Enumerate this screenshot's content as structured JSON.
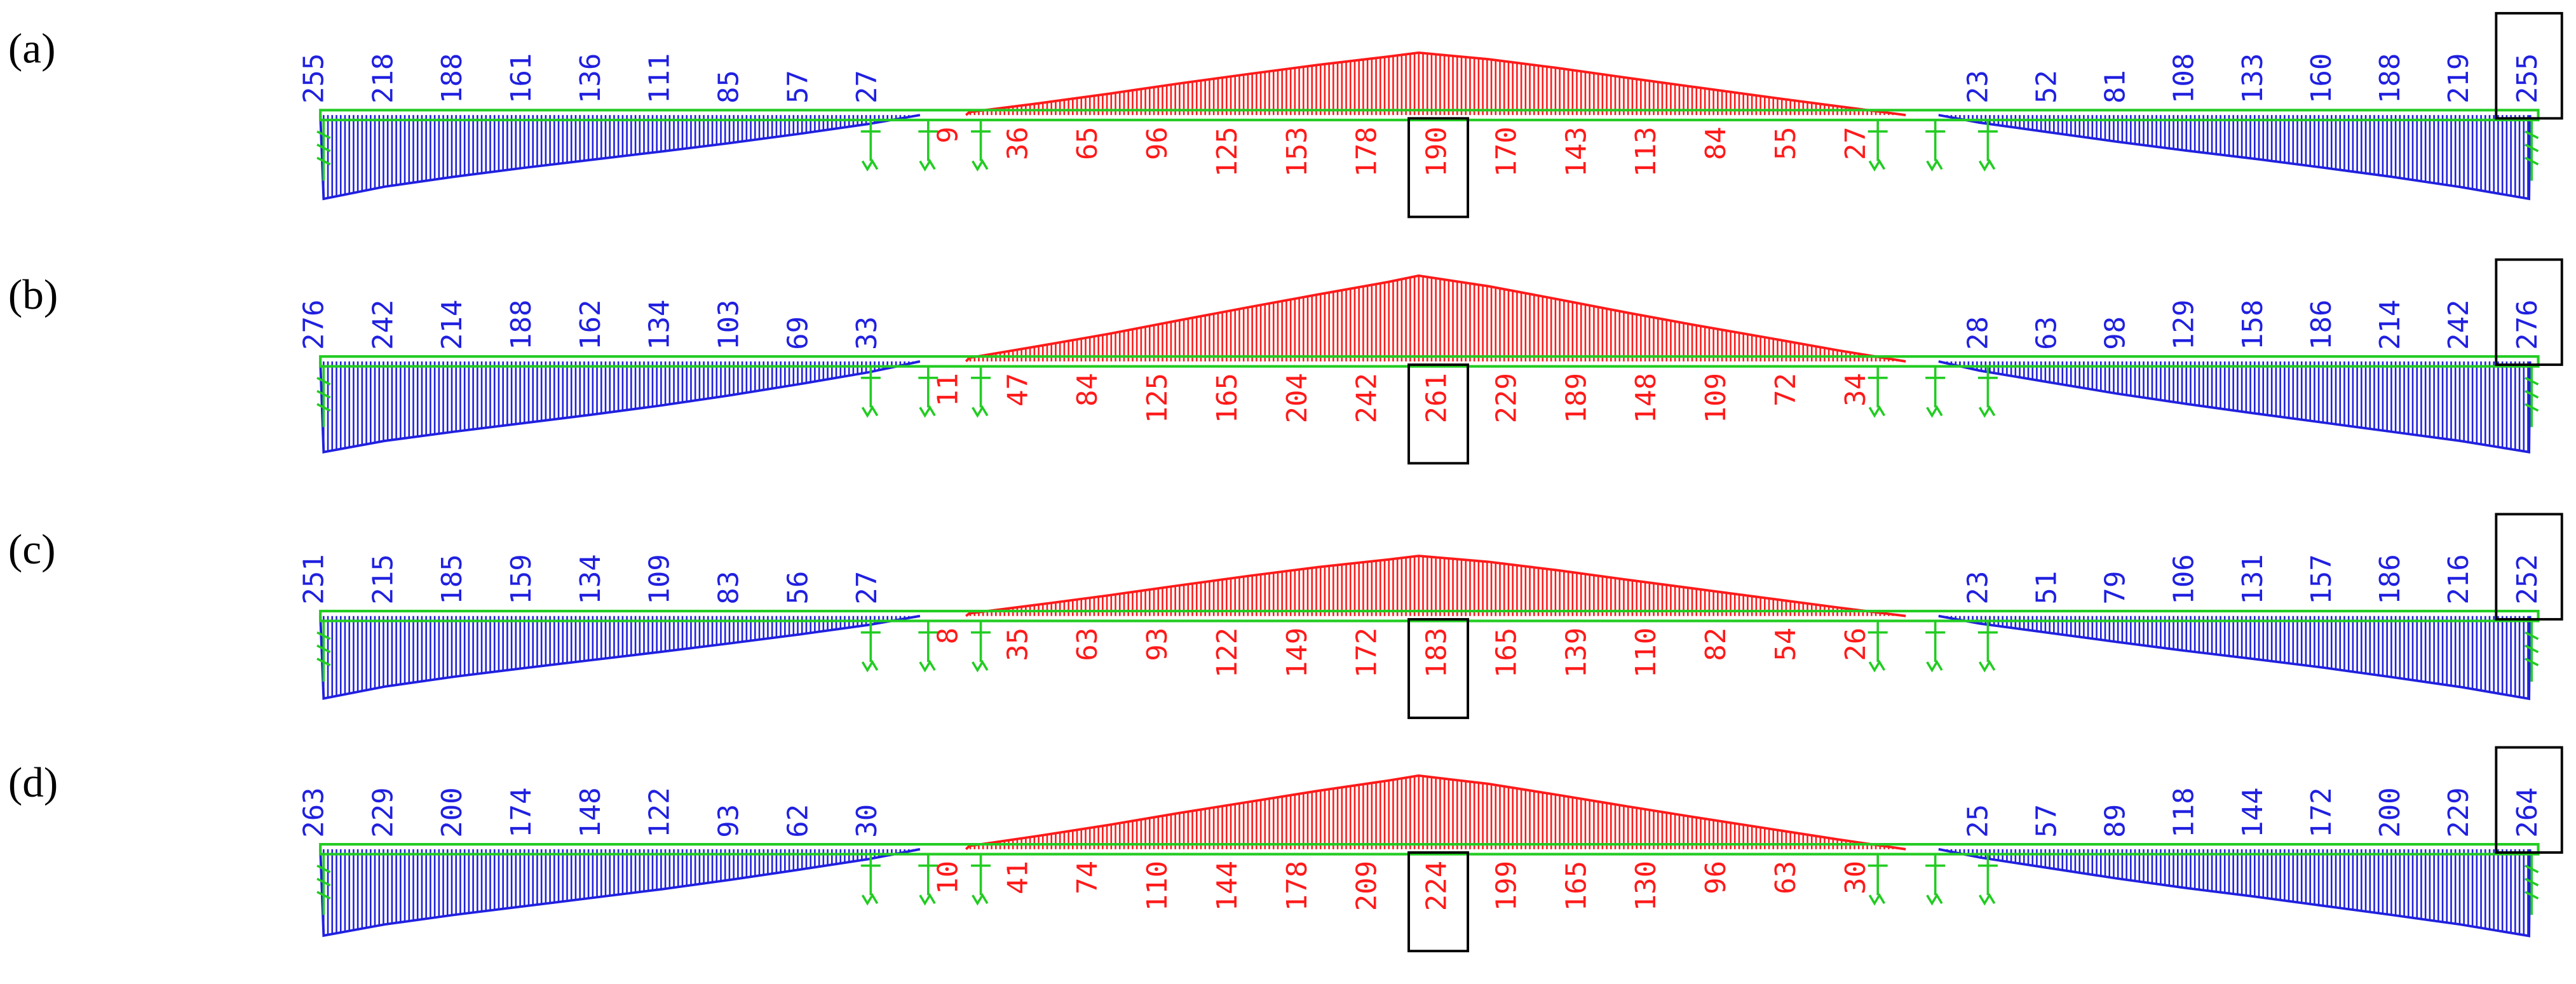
{
  "panels": [
    {
      "label": "(a)",
      "hogging_left": [
        255,
        218,
        188,
        161,
        136,
        111,
        85,
        57,
        27
      ],
      "sagging": [
        9,
        36,
        65,
        96,
        125,
        153,
        178,
        190,
        170,
        143,
        113,
        84,
        55,
        27
      ],
      "hogging_right": [
        23,
        52,
        81,
        108,
        133,
        160,
        188,
        219,
        255
      ]
    },
    {
      "label": "(b)",
      "hogging_left": [
        276,
        242,
        214,
        188,
        162,
        134,
        103,
        69,
        33
      ],
      "sagging": [
        11,
        47,
        84,
        125,
        165,
        204,
        242,
        261,
        229,
        189,
        148,
        109,
        72,
        34
      ],
      "hogging_right": [
        28,
        63,
        98,
        129,
        158,
        186,
        214,
        242,
        276
      ]
    },
    {
      "label": "(c)",
      "hogging_left": [
        251,
        215,
        185,
        159,
        134,
        109,
        83,
        56,
        27
      ],
      "sagging": [
        8,
        35,
        63,
        93,
        122,
        149,
        172,
        183,
        165,
        139,
        110,
        82,
        54,
        26
      ],
      "hogging_right": [
        23,
        51,
        79,
        106,
        131,
        157,
        186,
        216,
        252
      ]
    },
    {
      "label": "(d)",
      "hogging_left": [
        263,
        229,
        200,
        174,
        148,
        122,
        93,
        62,
        30
      ],
      "sagging": [
        10,
        41,
        74,
        110,
        144,
        178,
        209,
        224,
        199,
        165,
        130,
        96,
        63,
        30
      ],
      "hogging_right": [
        25,
        57,
        89,
        118,
        144,
        172,
        200,
        229,
        264
      ]
    }
  ]
}
